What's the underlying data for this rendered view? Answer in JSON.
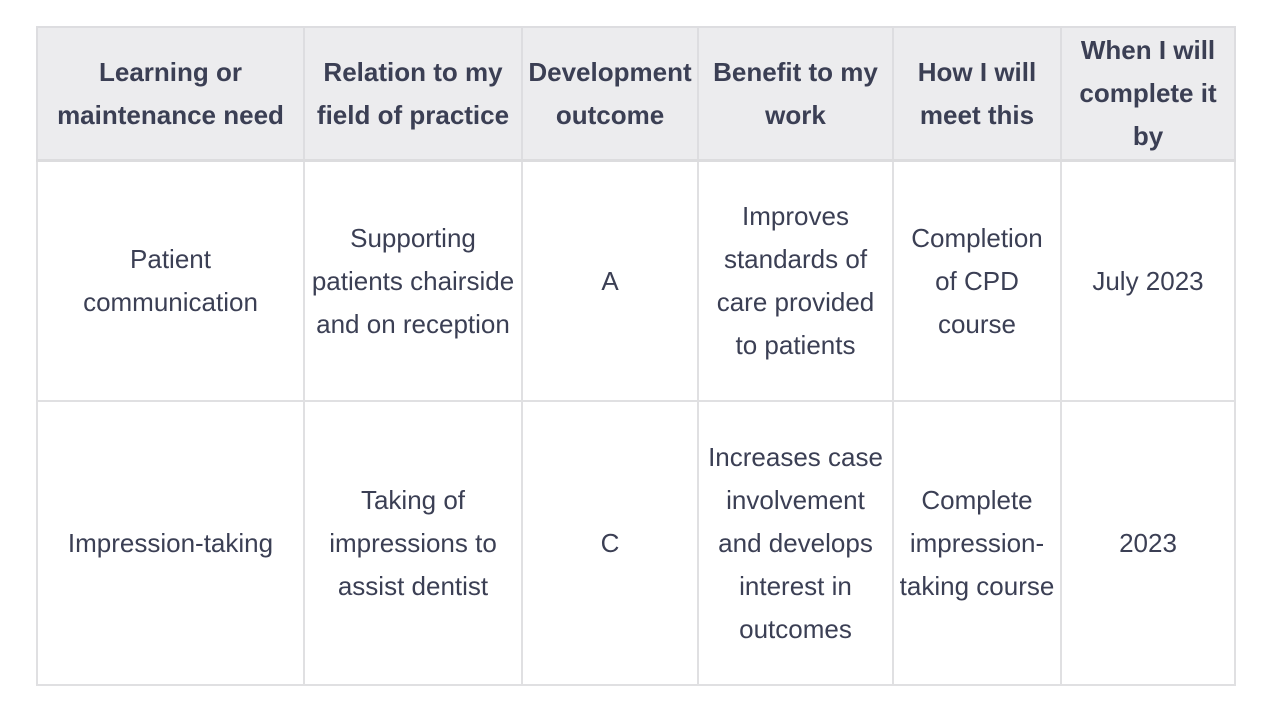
{
  "colors": {
    "text": "#3b3f54",
    "border": "#e0e0e2",
    "header_background": "#ececee",
    "page_background": "#ffffff"
  },
  "table": {
    "headers": [
      "Learning or maintenance need",
      "Relation to my field of practice",
      "Development outcome",
      "Benefit to my work",
      "How I will meet this",
      "When I will complete it by"
    ],
    "rows": [
      [
        "Patient communication",
        "Supporting patients chairside and on reception",
        "A",
        "Improves standards of care provided to patients",
        "Completion of CPD course",
        "July 2023"
      ],
      [
        "Impression-taking",
        "Taking of impressions to assist dentist",
        "C",
        "Increases case involvement and develops interest in outcomes",
        "Complete impression-taking course",
        "2023"
      ]
    ]
  }
}
